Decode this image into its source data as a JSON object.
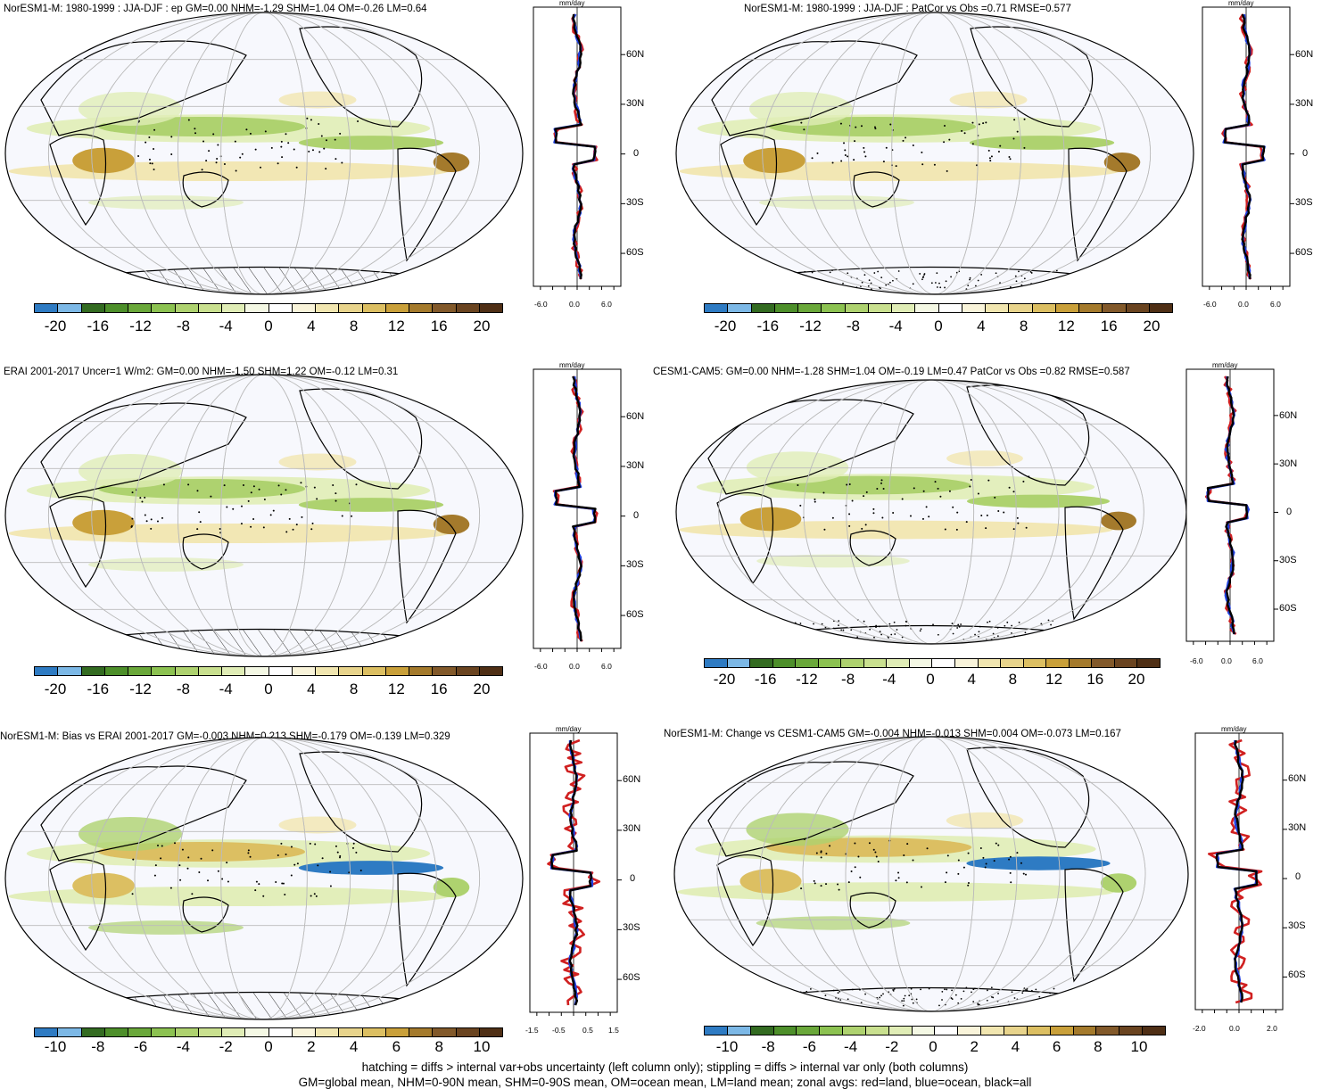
{
  "colors": {
    "scale": [
      "#2e7bc3",
      "#7cb8e6",
      "#336b21",
      "#4d8f2a",
      "#6aa83a",
      "#8cc251",
      "#aed26f",
      "#c9e08f",
      "#e0edb6",
      "#f4f8e4",
      "#ffffff",
      "#f9f4da",
      "#f1e6b0",
      "#e8d48c",
      "#dcbf62",
      "#c9a03a",
      "#a47a2c",
      "#82592a",
      "#6a4420",
      "#4f2f15"
    ],
    "land_line": "#d02020",
    "ocean_line": "#2040e0",
    "all_line": "#000000"
  },
  "panels": [
    {
      "id": "p1",
      "title": "NorESM1-M: 1980-1999 : JJA-DJF : ep GM=0.00 NHM=-1.29 SHM=1.04 OM=-0.26 LM=0.64",
      "unit": "mm/day",
      "lat_labels": [
        "60N",
        "30N",
        "0",
        "30S",
        "60S"
      ],
      "x_ticks": [
        "-6.0",
        "0.0",
        "6.0"
      ],
      "colorbar_labels": [
        "-20",
        "-16",
        "-12",
        "-8",
        "-4",
        "0",
        "4",
        "8",
        "12",
        "16",
        "20"
      ],
      "pattern": "hatch"
    },
    {
      "id": "p2",
      "title": "NorESM1-M: 1980-1999 : JJA-DJF : PatCor vs Obs =0.71 RMSE=0.577",
      "unit": "mm/day",
      "lat_labels": [
        "60N",
        "30N",
        "0",
        "30S",
        "60S"
      ],
      "x_ticks": [
        "-6.0",
        "0.0",
        "6.0"
      ],
      "colorbar_labels": [
        "-20",
        "-16",
        "-12",
        "-8",
        "-4",
        "0",
        "4",
        "8",
        "12",
        "16",
        "20"
      ],
      "pattern": "stipple"
    },
    {
      "id": "p3",
      "title": "ERAI 2001-2017 Uncer=1 W/m2: GM=0.00 NHM=-1.50 SHM=1.22 OM=-0.12 LM=0.31",
      "unit": "mm/day",
      "lat_labels": [
        "60N",
        "30N",
        "0",
        "30S",
        "60S"
      ],
      "x_ticks": [
        "-6.0",
        "0.0",
        "6.0"
      ],
      "colorbar_labels": [
        "-20",
        "-16",
        "-12",
        "-8",
        "-4",
        "0",
        "4",
        "8",
        "12",
        "16",
        "20"
      ],
      "pattern": "hatch"
    },
    {
      "id": "p4",
      "title": "CESM1-CAM5: GM=0.00 NHM=-1.28 SHM=1.04 OM=-0.19 LM=0.47 PatCor vs Obs =0.82 RMSE=0.587",
      "unit": "mm/day",
      "lat_labels": [
        "60N",
        "30N",
        "0",
        "30S",
        "60S"
      ],
      "x_ticks": [
        "-6.0",
        "0.0",
        "6.0"
      ],
      "colorbar_labels": [
        "-20",
        "-16",
        "-12",
        "-8",
        "-4",
        "0",
        "4",
        "8",
        "12",
        "16",
        "20"
      ],
      "pattern": "stipple"
    },
    {
      "id": "p5",
      "title": "NorESM1-M: Bias vs ERAI 2001-2017 GM=-0.003 NHM=0.213 SHM=-0.179 OM=-0.139 LM=0.329",
      "unit": "mm/day",
      "lat_labels": [
        "60N",
        "30N",
        "0",
        "30S",
        "60S"
      ],
      "x_ticks": [
        "-1.5",
        "-0.5",
        "0.5",
        "1.5"
      ],
      "colorbar_labels": [
        "-10",
        "-8",
        "-6",
        "-4",
        "-2",
        "0",
        "2",
        "4",
        "6",
        "8",
        "10"
      ],
      "pattern": "hatch"
    },
    {
      "id": "p6",
      "title": "NorESM1-M: Change vs CESM1-CAM5 GM=-0.004 NHM=-0.013 SHM=0.004 OM=-0.073 LM=0.167",
      "unit": "mm/day",
      "lat_labels": [
        "60N",
        "30N",
        "0",
        "30S",
        "60S"
      ],
      "x_ticks": [
        "-2.0",
        "0.0",
        "2.0"
      ],
      "colorbar_labels": [
        "-10",
        "-8",
        "-6",
        "-4",
        "-2",
        "0",
        "2",
        "4",
        "6",
        "8",
        "10"
      ],
      "pattern": "stipple"
    }
  ],
  "footer": {
    "line1": "hatching = diffs > internal var+obs uncertainty (left column only); stippling = diffs > internal var only (both columns)",
    "line2": "GM=global mean, NHM=0-90N mean, SHM=0-90S mean, OM=ocean mean, LM=land mean; zonal avgs: red=land, blue=ocean, black=all"
  }
}
